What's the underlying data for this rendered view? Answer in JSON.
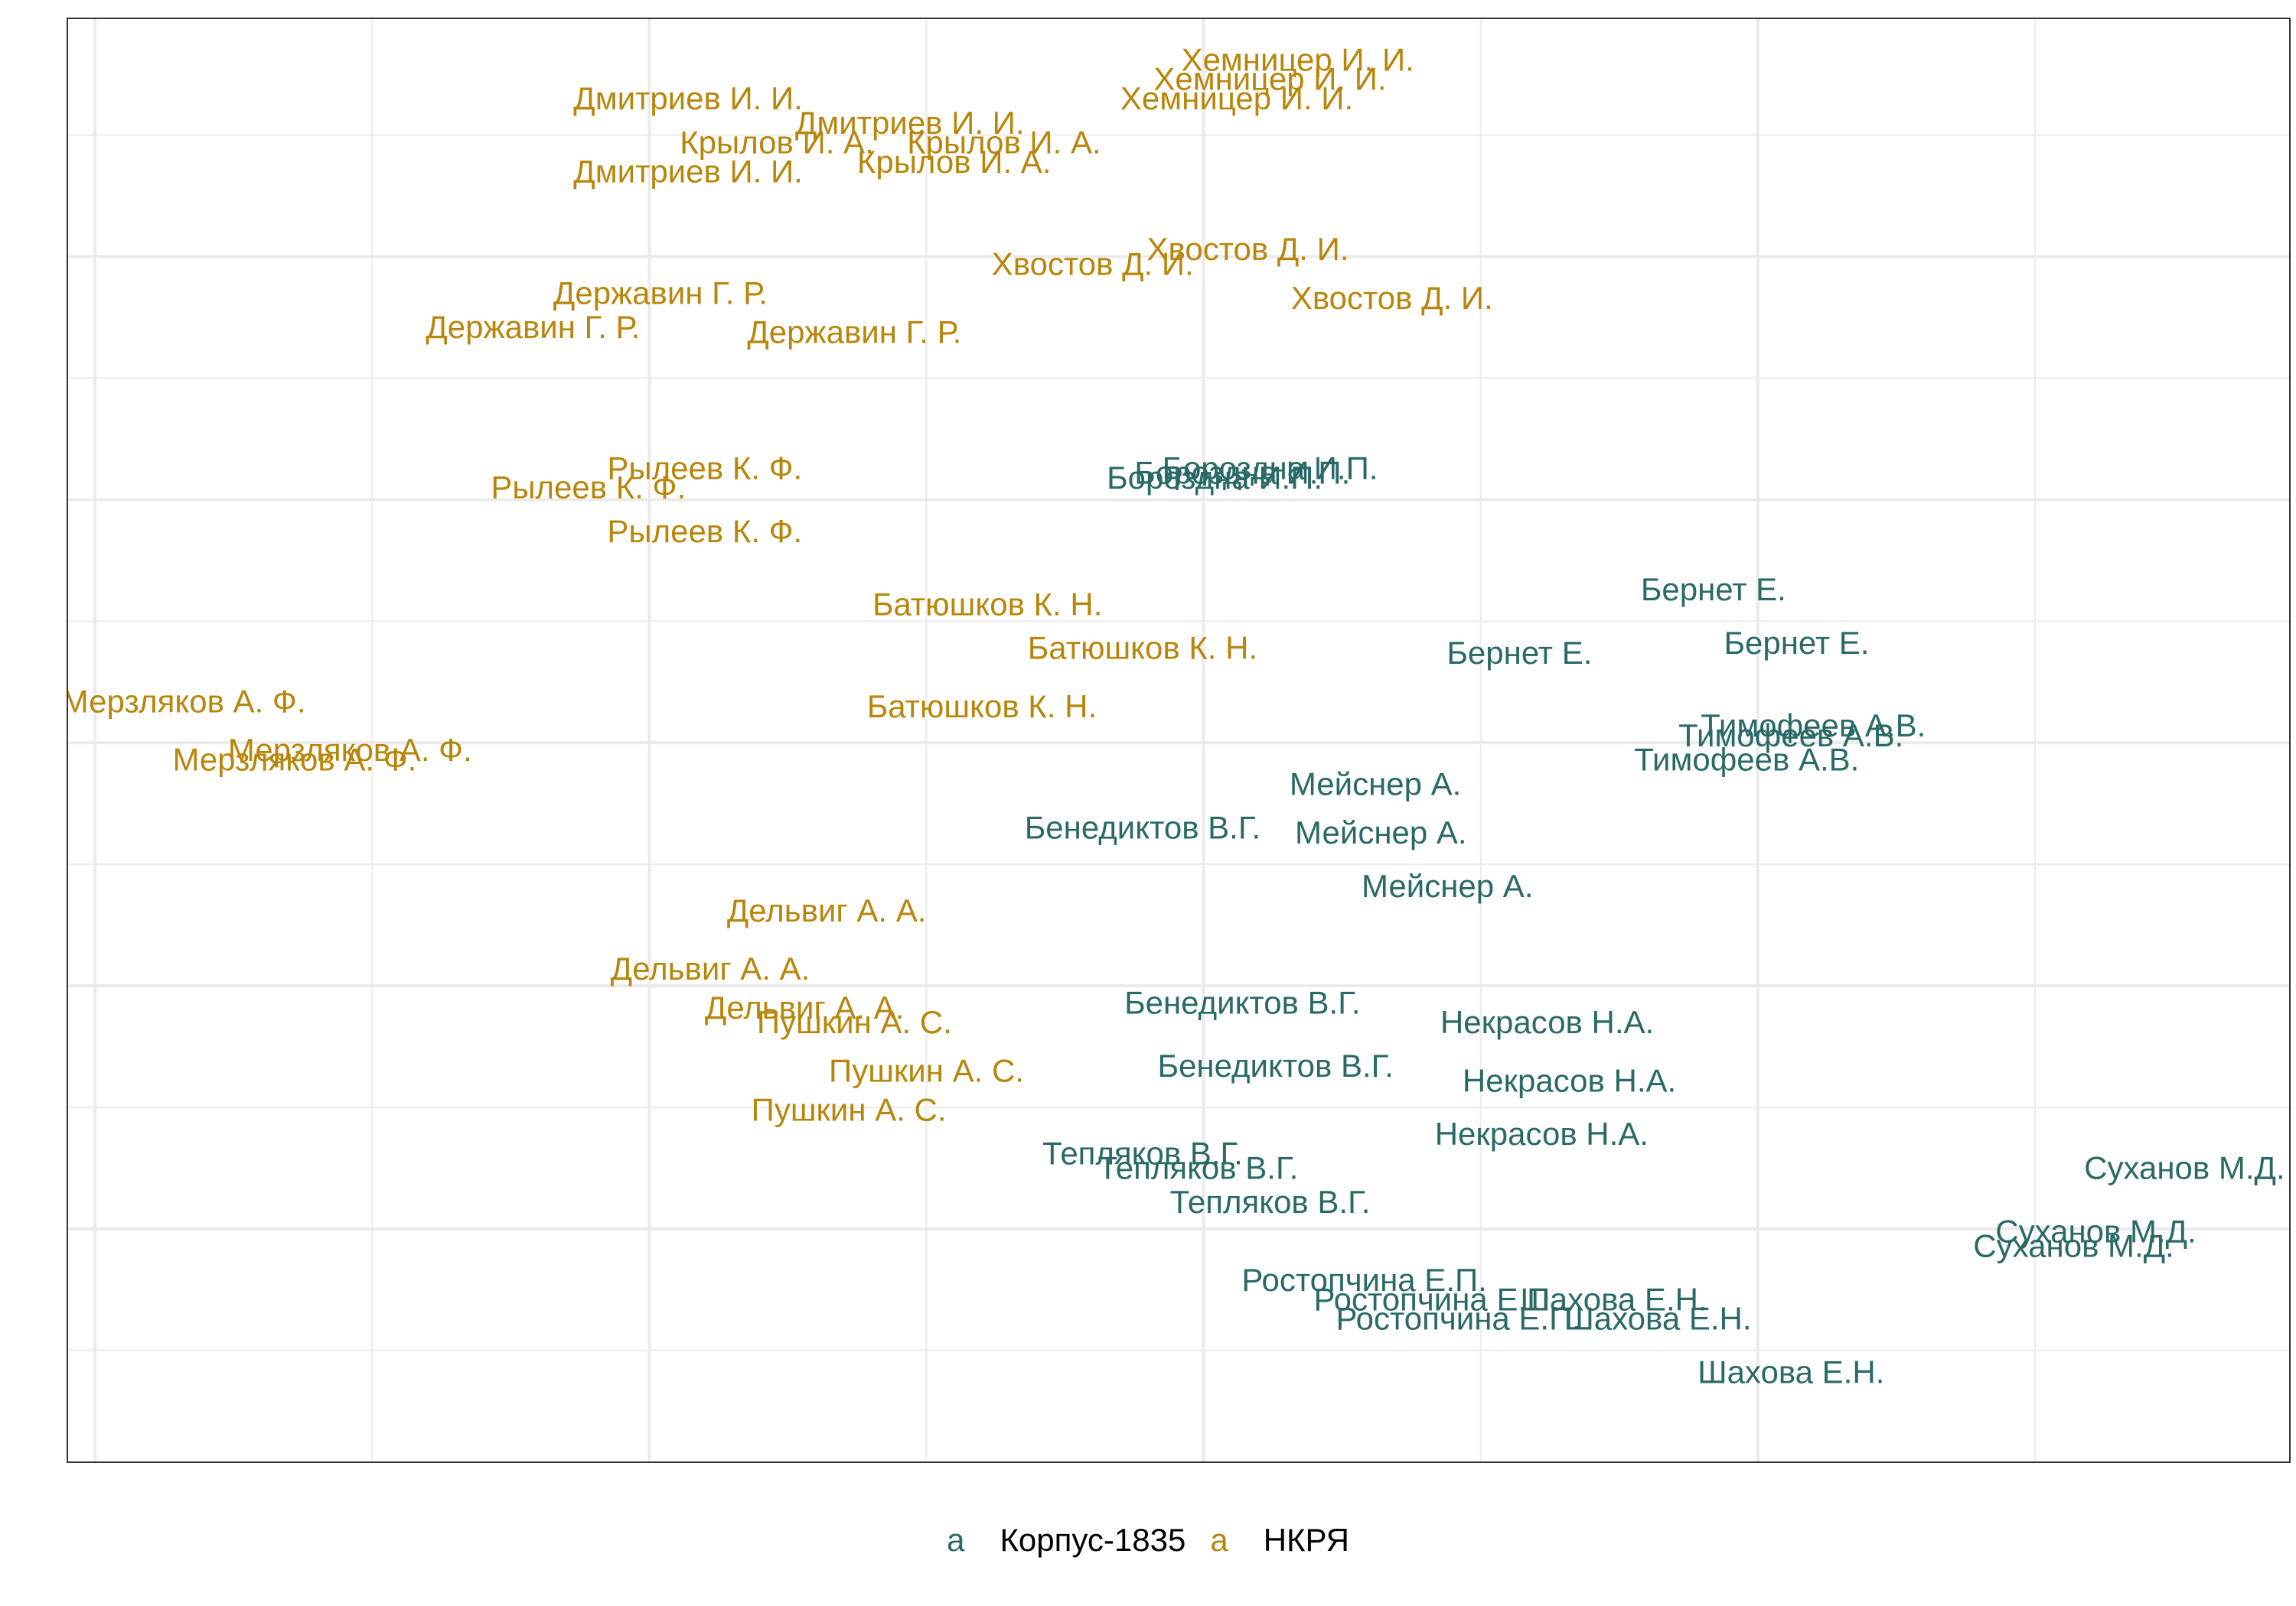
{
  "chart_data": {
    "type": "scatter",
    "title": "",
    "xlabel": "",
    "ylabel": "",
    "xlim": [
      -0.05,
      3.96
    ],
    "ylim": [
      -0.98,
      1.99
    ],
    "grid": true,
    "legend_position": "bottom",
    "series": [
      {
        "name": "Корпус-1835",
        "color": "#2a6a66",
        "points": [
          {
            "x": 2.12,
            "y": 1.06,
            "label": "Бороздна И.П."
          },
          {
            "x": 2.07,
            "y": 1.05,
            "label": "Бороздна И.П."
          },
          {
            "x": 2.02,
            "y": 1.04,
            "label": "Бороздна И.П."
          },
          {
            "x": 2.92,
            "y": 0.81,
            "label": "Бернет Е."
          },
          {
            "x": 3.07,
            "y": 0.7,
            "label": "Бернет Е."
          },
          {
            "x": 2.57,
            "y": 0.68,
            "label": "Бернет Е."
          },
          {
            "x": 3.1,
            "y": 0.53,
            "label": "Тимофеев А.В."
          },
          {
            "x": 3.06,
            "y": 0.51,
            "label": "Тимофеев А.В."
          },
          {
            "x": 2.98,
            "y": 0.46,
            "label": "Тимофеев А.В."
          },
          {
            "x": 2.31,
            "y": 0.41,
            "label": "Мейснер А."
          },
          {
            "x": 2.32,
            "y": 0.31,
            "label": "Мейснер А."
          },
          {
            "x": 2.44,
            "y": 0.2,
            "label": "Мейснер А."
          },
          {
            "x": 1.89,
            "y": 0.32,
            "label": "Бенедиктов В.Г."
          },
          {
            "x": 2.07,
            "y": -0.04,
            "label": "Бенедиктов В.Г."
          },
          {
            "x": 2.13,
            "y": -0.17,
            "label": "Бенедиктов В.Г."
          },
          {
            "x": 2.62,
            "y": -0.08,
            "label": "Некрасов Н.А."
          },
          {
            "x": 2.66,
            "y": -0.2,
            "label": "Некрасов Н.А."
          },
          {
            "x": 2.61,
            "y": -0.31,
            "label": "Некрасов Н.А."
          },
          {
            "x": 1.89,
            "y": -0.35,
            "label": "Тепляков В.Г."
          },
          {
            "x": 1.99,
            "y": -0.38,
            "label": "Тепляков В.Г."
          },
          {
            "x": 2.12,
            "y": -0.45,
            "label": "Тепляков В.Г."
          },
          {
            "x": 3.77,
            "y": -0.38,
            "label": "Суханов М.Д."
          },
          {
            "x": 3.61,
            "y": -0.51,
            "label": "Суханов М.Д."
          },
          {
            "x": 3.57,
            "y": -0.54,
            "label": "Суханов М.Д."
          },
          {
            "x": 2.29,
            "y": -0.61,
            "label": "Ростопчина Е.П."
          },
          {
            "x": 2.42,
            "y": -0.65,
            "label": "Ростопчина Е.П."
          },
          {
            "x": 2.46,
            "y": -0.69,
            "label": "Ростопчина Е.П."
          },
          {
            "x": 2.74,
            "y": -0.65,
            "label": "Шахова Е.Н."
          },
          {
            "x": 2.82,
            "y": -0.69,
            "label": "Шахова Е.Н."
          },
          {
            "x": 3.06,
            "y": -0.8,
            "label": "Шахова Е.Н."
          }
        ]
      },
      {
        "name": "НКРЯ",
        "color": "#b8860b",
        "points": [
          {
            "x": 2.17,
            "y": 1.9,
            "label": "Хемницер И. И."
          },
          {
            "x": 2.12,
            "y": 1.86,
            "label": "Хемницер И. И."
          },
          {
            "x": 2.06,
            "y": 1.82,
            "label": "Хемницер И. И."
          },
          {
            "x": 1.07,
            "y": 1.82,
            "label": "Дмитриев И. И."
          },
          {
            "x": 1.47,
            "y": 1.77,
            "label": "Дмитриев И. И."
          },
          {
            "x": 1.07,
            "y": 1.67,
            "label": "Дмитриев И. И."
          },
          {
            "x": 1.23,
            "y": 1.73,
            "label": "Крылов И. А."
          },
          {
            "x": 1.64,
            "y": 1.73,
            "label": "Крылов И. А."
          },
          {
            "x": 1.55,
            "y": 1.69,
            "label": "Крылов И. А."
          },
          {
            "x": 2.08,
            "y": 1.51,
            "label": "Хвостов Д. И."
          },
          {
            "x": 1.8,
            "y": 1.48,
            "label": "Хвостов Д. И."
          },
          {
            "x": 2.34,
            "y": 1.41,
            "label": "Хвостов Д. И."
          },
          {
            "x": 1.02,
            "y": 1.42,
            "label": "Державин Г. Р."
          },
          {
            "x": 0.79,
            "y": 1.35,
            "label": "Державин Г. Р."
          },
          {
            "x": 1.37,
            "y": 1.34,
            "label": "Державин Г. Р."
          },
          {
            "x": 1.1,
            "y": 1.06,
            "label": "Рылеев К. Ф."
          },
          {
            "x": 0.89,
            "y": 1.02,
            "label": "Рылеев К. Ф."
          },
          {
            "x": 1.1,
            "y": 0.93,
            "label": "Рылеев К. Ф."
          },
          {
            "x": 1.61,
            "y": 0.78,
            "label": "Батюшков К. Н."
          },
          {
            "x": 1.89,
            "y": 0.69,
            "label": "Батюшков К. Н."
          },
          {
            "x": 1.6,
            "y": 0.57,
            "label": "Батюшков К. Н."
          },
          {
            "x": 0.16,
            "y": 0.58,
            "label": "Мерзляков А. Ф."
          },
          {
            "x": 0.46,
            "y": 0.48,
            "label": "Мерзляков А. Ф."
          },
          {
            "x": 0.36,
            "y": 0.46,
            "label": "Мерзляков А. Ф."
          },
          {
            "x": 1.32,
            "y": 0.15,
            "label": "Дельвиг А. А."
          },
          {
            "x": 1.11,
            "y": 0.03,
            "label": "Дельвиг А. А."
          },
          {
            "x": 1.28,
            "y": -0.05,
            "label": "Дельвиг А. А."
          },
          {
            "x": 1.37,
            "y": -0.08,
            "label": "Пушкин А. С."
          },
          {
            "x": 1.5,
            "y": -0.18,
            "label": "Пушкин А. С."
          },
          {
            "x": 1.36,
            "y": -0.26,
            "label": "Пушкин А. С."
          }
        ]
      }
    ]
  },
  "legend": {
    "key_glyph": "a",
    "items": [
      {
        "label": "Корпус-1835",
        "color": "#2a6a66"
      },
      {
        "label": "НКРЯ",
        "color": "#b8860b"
      }
    ]
  }
}
